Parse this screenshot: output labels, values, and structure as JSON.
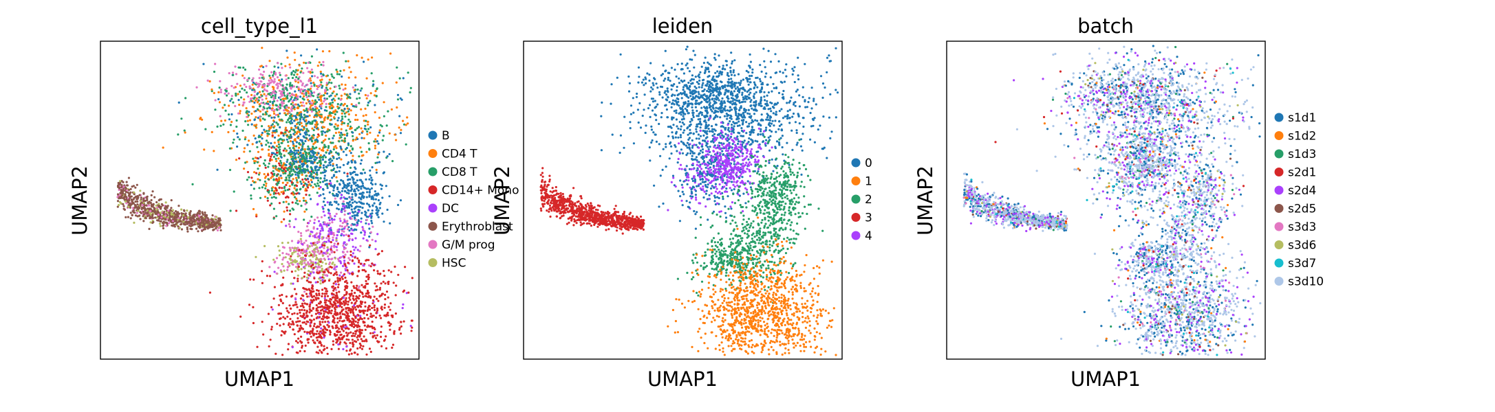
{
  "chart_data": [
    {
      "type": "scatter",
      "title": "cell_type_l1",
      "xlabel": "UMAP1",
      "ylabel": "UMAP2",
      "ticks_visible": false,
      "grid": false,
      "legend_placement": "right",
      "series": [
        {
          "name": "B",
          "color": "#1f77b4"
        },
        {
          "name": "CD4 T",
          "color": "#ff7f0e"
        },
        {
          "name": "CD8 T",
          "color": "#279e68"
        },
        {
          "name": "CD14+ Mono",
          "color": "#d62728"
        },
        {
          "name": "DC",
          "color": "#aa40fc"
        },
        {
          "name": "Erythroblast",
          "color": "#8c564b"
        },
        {
          "name": "G/M prog",
          "color": "#e377c2"
        },
        {
          "name": "HSC",
          "color": "#b5bd61"
        }
      ]
    },
    {
      "type": "scatter",
      "title": "leiden",
      "xlabel": "UMAP1",
      "ylabel": "UMAP2",
      "ticks_visible": false,
      "grid": false,
      "legend_placement": "right",
      "series": [
        {
          "name": "0",
          "color": "#1f77b4"
        },
        {
          "name": "1",
          "color": "#ff7f0e"
        },
        {
          "name": "2",
          "color": "#279e68"
        },
        {
          "name": "3",
          "color": "#d62728"
        },
        {
          "name": "4",
          "color": "#aa40fc"
        }
      ]
    },
    {
      "type": "scatter",
      "title": "batch",
      "xlabel": "UMAP1",
      "ylabel": "UMAP2",
      "ticks_visible": false,
      "grid": false,
      "legend_placement": "right",
      "series": [
        {
          "name": "s1d1",
          "color": "#1f77b4"
        },
        {
          "name": "s1d2",
          "color": "#ff7f0e"
        },
        {
          "name": "s1d3",
          "color": "#279e68"
        },
        {
          "name": "s2d1",
          "color": "#d62728"
        },
        {
          "name": "s2d4",
          "color": "#aa40fc"
        },
        {
          "name": "s2d5",
          "color": "#8c564b"
        },
        {
          "name": "s3d3",
          "color": "#e377c2"
        },
        {
          "name": "s3d6",
          "color": "#b5bd61"
        },
        {
          "name": "s3d7",
          "color": "#17becf"
        },
        {
          "name": "s3d10",
          "color": "#aec7e8"
        }
      ]
    }
  ]
}
